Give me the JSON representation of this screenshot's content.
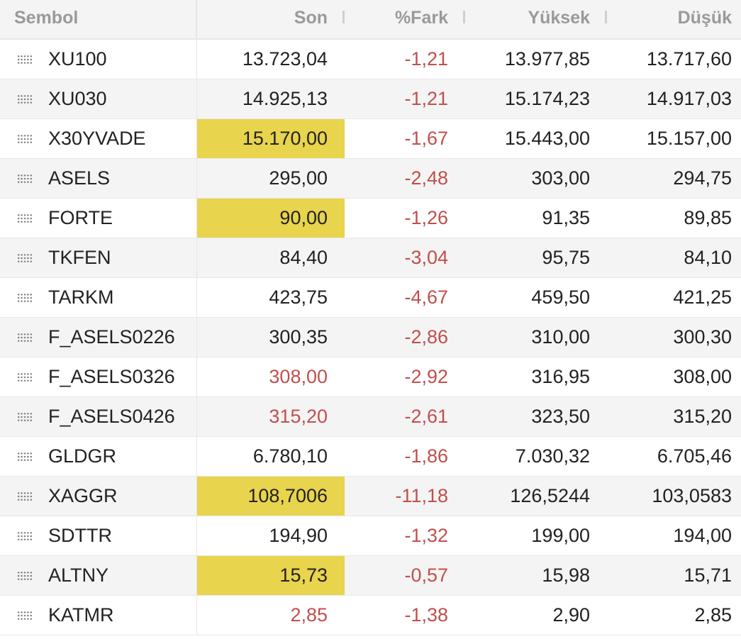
{
  "header": {
    "symbol": "Sembol",
    "last": "Son",
    "change": "%Fark",
    "high": "Yüksek",
    "low": "Düşük"
  },
  "colors": {
    "highlight": "#e8d44d",
    "negative": "#c0504d",
    "text": "#222222",
    "header_text": "#9a9a9a"
  },
  "rows": [
    {
      "symbol": "XU100",
      "last": "13.723,04",
      "change": "-1,21",
      "high": "13.977,85",
      "low": "13.717,60",
      "last_state": "normal"
    },
    {
      "symbol": "XU030",
      "last": "14.925,13",
      "change": "-1,21",
      "high": "15.174,23",
      "low": "14.917,03",
      "last_state": "normal"
    },
    {
      "symbol": "X30YVADE",
      "last": "15.170,00",
      "change": "-1,67",
      "high": "15.443,00",
      "low": "15.157,00",
      "last_state": "highlight"
    },
    {
      "symbol": "ASELS",
      "last": "295,00",
      "change": "-2,48",
      "high": "303,00",
      "low": "294,75",
      "last_state": "normal"
    },
    {
      "symbol": "FORTE",
      "last": "90,00",
      "change": "-1,26",
      "high": "91,35",
      "low": "89,85",
      "last_state": "highlight"
    },
    {
      "symbol": "TKFEN",
      "last": "84,40",
      "change": "-3,04",
      "high": "95,75",
      "low": "84,10",
      "last_state": "normal"
    },
    {
      "symbol": "TARKM",
      "last": "423,75",
      "change": "-4,67",
      "high": "459,50",
      "low": "421,25",
      "last_state": "normal"
    },
    {
      "symbol": "F_ASELS0226",
      "last": "300,35",
      "change": "-2,86",
      "high": "310,00",
      "low": "300,30",
      "last_state": "normal"
    },
    {
      "symbol": "F_ASELS0326",
      "last": "308,00",
      "change": "-2,92",
      "high": "316,95",
      "low": "308,00",
      "last_state": "red"
    },
    {
      "symbol": "F_ASELS0426",
      "last": "315,20",
      "change": "-2,61",
      "high": "323,50",
      "low": "315,20",
      "last_state": "red"
    },
    {
      "symbol": "GLDGR",
      "last": "6.780,10",
      "change": "-1,86",
      "high": "7.030,32",
      "low": "6.705,46",
      "last_state": "normal"
    },
    {
      "symbol": "XAGGR",
      "last": "108,7006",
      "change": "-11,18",
      "high": "126,5244",
      "low": "103,0583",
      "last_state": "highlight"
    },
    {
      "symbol": "SDTTR",
      "last": "194,90",
      "change": "-1,32",
      "high": "199,00",
      "low": "194,00",
      "last_state": "normal"
    },
    {
      "symbol": "ALTNY",
      "last": "15,73",
      "change": "-0,57",
      "high": "15,98",
      "low": "15,71",
      "last_state": "highlight"
    },
    {
      "symbol": "KATMR",
      "last": "2,85",
      "change": "-1,38",
      "high": "2,90",
      "low": "2,85",
      "last_state": "red"
    }
  ]
}
